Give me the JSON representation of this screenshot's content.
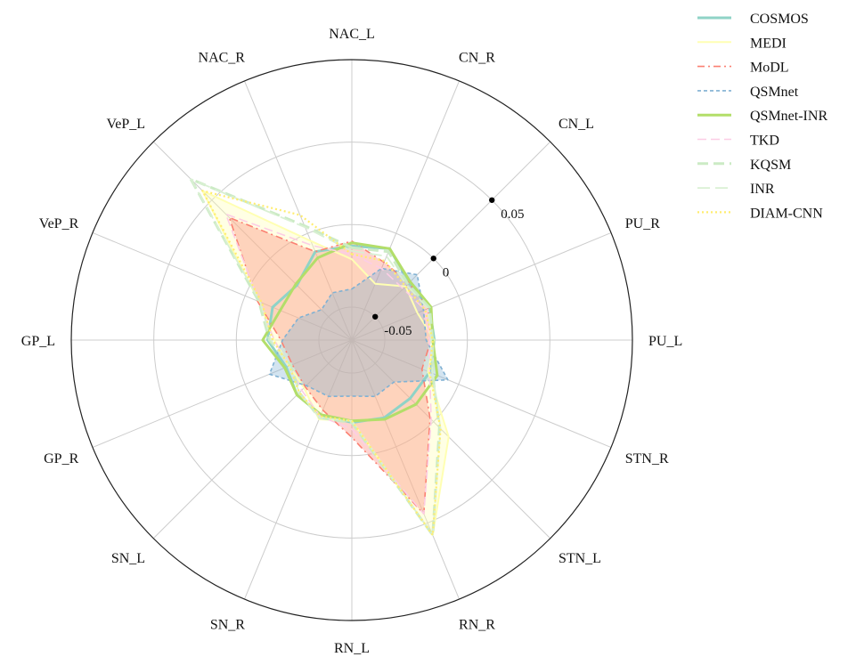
{
  "chart_data": {
    "type": "radar",
    "title": "",
    "categories": [
      "NAC_L",
      "CN_R",
      "CN_L",
      "PU_R",
      "PU_L",
      "STN_R",
      "STN_L",
      "RN_R",
      "RN_L",
      "SN_R",
      "SN_L",
      "GP_R",
      "GP_L",
      "VeP_R",
      "VeP_L",
      "NAC_R"
    ],
    "radial_ticks": [
      {
        "value": 0.05,
        "label": "0.05"
      },
      {
        "value": 0,
        "label": "0"
      },
      {
        "value": -0.05,
        "label": "-0.05"
      }
    ],
    "r_min": -0.07,
    "r_max": 0.1,
    "grid": true,
    "legend_position": "top-right",
    "series": [
      {
        "name": "COSMOS",
        "color": "#8fd3c7",
        "dash": "solid",
        "width": 3,
        "fill": false,
        "values": [
          -0.013,
          -0.01,
          -0.021,
          -0.019,
          -0.02,
          -0.019,
          -0.02,
          -0.019,
          -0.02,
          -0.021,
          -0.023,
          -0.027,
          -0.019,
          -0.018,
          -0.023,
          -0.012
        ]
      },
      {
        "name": "MEDI",
        "color": "#ffffb3",
        "dash": "solid",
        "width": 2,
        "fill": true,
        "values": [
          -0.021,
          -0.033,
          -0.024,
          -0.027,
          -0.02,
          -0.02,
          0.013,
          0.058,
          -0.021,
          -0.018,
          -0.029,
          -0.029,
          -0.023,
          -0.009,
          0.058,
          -0.005
        ]
      },
      {
        "name": "MoDL",
        "color": "#fb8072",
        "dash": "8,4,2,4",
        "width": 1.6,
        "fill": true,
        "values": [
          -0.01,
          -0.019,
          -0.021,
          -0.02,
          -0.022,
          -0.024,
          -0.003,
          0.044,
          -0.011,
          -0.024,
          -0.03,
          -0.031,
          -0.027,
          -0.008,
          0.035,
          -0.012
        ]
      },
      {
        "name": "QSMnet",
        "color": "#80b1d3",
        "dash": "4,3",
        "width": 1.6,
        "fill": true,
        "values": [
          -0.039,
          -0.023,
          -0.014,
          -0.023,
          -0.025,
          -0.007,
          -0.034,
          -0.033,
          -0.036,
          -0.033,
          -0.031,
          -0.016,
          -0.028,
          -0.035,
          -0.044,
          -0.039
        ]
      },
      {
        "name": "QSMnet-INR",
        "color": "#b3de69",
        "dash": "solid",
        "width": 3,
        "fill": false,
        "values": [
          -0.011,
          -0.01,
          -0.02,
          -0.018,
          -0.021,
          -0.014,
          -0.015,
          -0.018,
          -0.021,
          -0.021,
          -0.023,
          -0.026,
          -0.016,
          -0.023,
          -0.022,
          -0.016
        ]
      },
      {
        "name": "TKD",
        "color": "#fccde5",
        "dash": "10,5",
        "width": 1.6,
        "fill": false,
        "values": [
          -0.018,
          -0.023,
          -0.026,
          -0.022,
          -0.023,
          -0.019,
          -0.002,
          0.044,
          -0.016,
          -0.02,
          -0.027,
          -0.029,
          -0.023,
          -0.009,
          0.038,
          -0.008
        ]
      },
      {
        "name": "KQSM",
        "color": "#ccebc5",
        "dash": "12,6",
        "width": 3,
        "fill": false,
        "values": [
          -0.014,
          -0.012,
          -0.022,
          -0.019,
          -0.021,
          -0.017,
          0.005,
          0.058,
          -0.02,
          -0.019,
          -0.025,
          -0.03,
          -0.02,
          -0.009,
          0.068,
          0.005
        ]
      },
      {
        "name": "INR",
        "color": "#d9f0d3",
        "dash": "14,6",
        "width": 1.8,
        "fill": false,
        "values": [
          -0.016,
          -0.015,
          -0.023,
          -0.02,
          -0.022,
          -0.017,
          0.006,
          0.058,
          -0.021,
          -0.019,
          -0.025,
          -0.029,
          -0.021,
          -0.01,
          0.068,
          0.004
        ]
      },
      {
        "name": "DIAM-CNN",
        "color": "#ffed6f",
        "dash": "2,3",
        "width": 2.2,
        "fill": false,
        "values": [
          -0.018,
          -0.018,
          -0.024,
          -0.022,
          -0.021,
          -0.019,
          0.006,
          0.058,
          -0.021,
          -0.02,
          -0.025,
          -0.029,
          -0.022,
          -0.011,
          0.058,
          0.012
        ]
      }
    ]
  }
}
